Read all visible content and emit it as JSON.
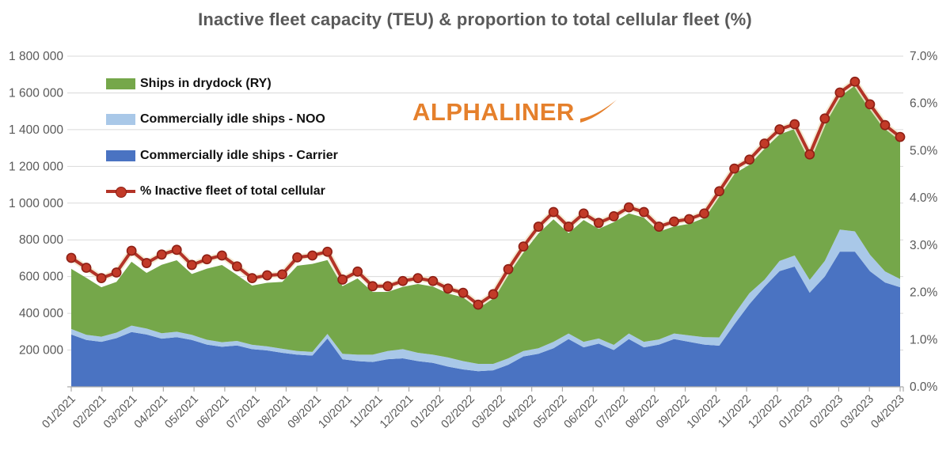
{
  "title": "Inactive fleet capacity (TEU) & proportion to total cellular fleet (%)",
  "watermark": {
    "text": "ALPHALINER"
  },
  "colors": {
    "drydock_green": "#75A74A",
    "noo_light_blue": "#A9C8E8",
    "carrier_blue": "#4A73C2",
    "pct_line_red": "#B33327",
    "pct_marker_fill": "#C23A28",
    "pct_marker_ring": "#8E2015",
    "pct_line_halo": "#F2E8CC",
    "gridline_gray": "#D9D9D9",
    "axis_line_gray": "#ABABAB",
    "axis_text_gray": "#595959",
    "title_gray": "#595959",
    "logo_orange": "#E5802C",
    "legend_text": "#111111"
  },
  "legend": [
    {
      "label": "Ships in drydock (RY)",
      "color": "#75A74A",
      "marker": "area"
    },
    {
      "label": "Commercially idle ships - NOO",
      "color": "#A9C8E8",
      "marker": "area"
    },
    {
      "label": "Commercially idle ships - Carrier",
      "color": "#4A73C2",
      "marker": "area"
    },
    {
      "label": "% Inactive fleet of total cellular",
      "color": "#B33327",
      "marker": "line-dot"
    }
  ],
  "chart_data": {
    "type": "combo: stacked-area (left axis, TEU) + line with markers (right axis, %)",
    "x_labels": [
      "01/2021",
      "02/2021",
      "03/2021",
      "04/2021",
      "05/2021",
      "06/2021",
      "07/2021",
      "08/2021",
      "09/2021",
      "10/2021",
      "11/2021",
      "12/2021",
      "01/2022",
      "02/2022",
      "03/2022",
      "04/2022",
      "05/2022",
      "06/2022",
      "07/2022",
      "08/2022",
      "09/2022",
      "10/2022",
      "11/2022",
      "12/2022",
      "01/2023",
      "02/2023",
      "03/2023",
      "04/2023"
    ],
    "points_per_month": 2,
    "sampling_note": "values estimated from pixels; 2 points per month (fortnightly surveys)",
    "left_axis": {
      "min": 0,
      "max": 1800000,
      "step": 200000,
      "tick_labels": [
        "1 800 000",
        "1 600 000",
        "1 400 000",
        "1 200 000",
        "1 000 000",
        "800 000",
        "600 000",
        "400 000",
        "200 000"
      ]
    },
    "right_axis": {
      "min": 0,
      "max": 7,
      "step": 1,
      "tick_labels": [
        "7.0%",
        "6.0%",
        "5.0%",
        "4.0%",
        "3.0%",
        "2.0%",
        "1.0%",
        "0.0%"
      ]
    },
    "grid": "horizontal only",
    "legend_position": "top-left inside plot",
    "series": [
      {
        "name": "Commercially idle ships - Carrier",
        "axis": "left",
        "stacked": true,
        "color": "#4A73C2",
        "values": [
          285000,
          255000,
          245000,
          265000,
          298000,
          285000,
          262000,
          270000,
          255000,
          230000,
          218000,
          225000,
          205000,
          198000,
          185000,
          175000,
          170000,
          263000,
          150000,
          140000,
          135000,
          150000,
          155000,
          140000,
          130000,
          110000,
          95000,
          85000,
          90000,
          120000,
          165000,
          180000,
          210000,
          260000,
          215000,
          235000,
          200000,
          260000,
          215000,
          230000,
          260000,
          245000,
          230000,
          224000,
          340000,
          450000,
          545000,
          630000,
          655000,
          512000,
          600000,
          736000,
          736000,
          629000,
          568000,
          542000
        ]
      },
      {
        "name": "Commercially idle ships - NOO",
        "axis": "left",
        "stacked": true,
        "color": "#A9C8E8",
        "values": [
          30000,
          28000,
          28000,
          30000,
          35000,
          32000,
          30000,
          30000,
          28000,
          26000,
          25000,
          25000,
          24000,
          22000,
          22000,
          20000,
          20000,
          25000,
          30000,
          35000,
          40000,
          45000,
          50000,
          45000,
          45000,
          50000,
          45000,
          40000,
          35000,
          35000,
          30000,
          30000,
          35000,
          30000,
          30000,
          28000,
          28000,
          30000,
          30000,
          28000,
          30000,
          35000,
          40000,
          45000,
          55000,
          60000,
          38000,
          55000,
          60000,
          70000,
          85000,
          120000,
          110000,
          90000,
          60000,
          45000
        ]
      },
      {
        "name": "Ships in drydock (RY)",
        "axis": "left",
        "stacked": true,
        "color": "#75A74A",
        "values": [
          327000,
          310000,
          269000,
          276000,
          348000,
          303000,
          372000,
          389000,
          331000,
          387000,
          420000,
          359000,
          322000,
          346000,
          364000,
          464000,
          479000,
          402000,
          368000,
          415000,
          341000,
          322000,
          339000,
          375000,
          371000,
          348000,
          347000,
          301000,
          356000,
          456000,
          535000,
          625000,
          667000,
          547000,
          663000,
          597000,
          668000,
          654000,
          676000,
          587000,
          583000,
          607000,
          649000,
          769000,
          765000,
          699000,
          713000,
          689000,
          689000,
          662000,
          753000,
          723000,
          794000,
          802000,
          782000,
          762000
        ]
      },
      {
        "name": "% Inactive fleet of total cellular",
        "axis": "right",
        "stacked": false,
        "color": "#B33327",
        "values": [
          2.73,
          2.52,
          2.3,
          2.42,
          2.88,
          2.62,
          2.8,
          2.9,
          2.58,
          2.7,
          2.78,
          2.55,
          2.3,
          2.36,
          2.38,
          2.74,
          2.78,
          2.86,
          2.27,
          2.44,
          2.13,
          2.13,
          2.24,
          2.3,
          2.24,
          2.08,
          1.99,
          1.74,
          1.96,
          2.49,
          2.97,
          3.39,
          3.7,
          3.39,
          3.67,
          3.47,
          3.61,
          3.8,
          3.7,
          3.39,
          3.5,
          3.55,
          3.67,
          4.14,
          4.62,
          4.81,
          5.15,
          5.45,
          5.56,
          4.92,
          5.68,
          6.23,
          6.46,
          5.98,
          5.54,
          5.29
        ]
      }
    ]
  }
}
